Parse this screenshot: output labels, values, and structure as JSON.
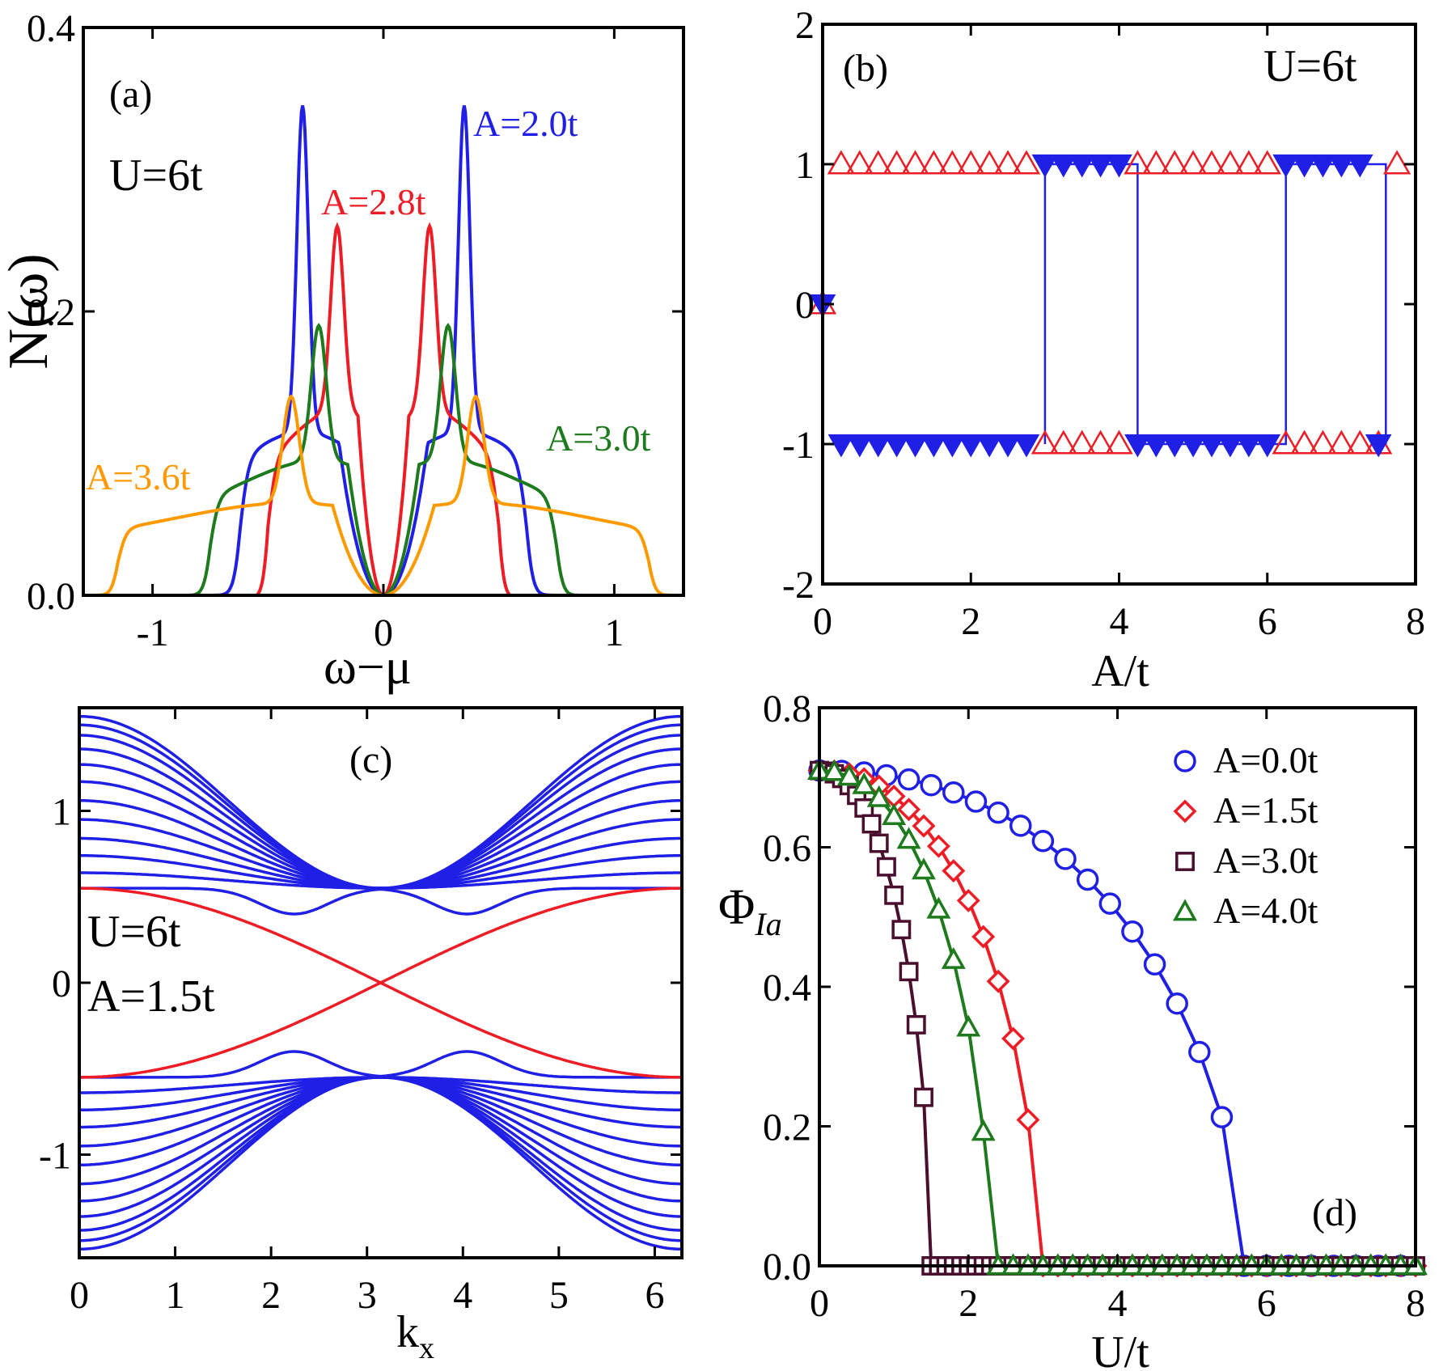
{
  "chart_data": [
    {
      "id": "a",
      "type": "line",
      "panel_label": "(a)",
      "annotation": "U=6t",
      "xlabel": "ω−μ",
      "ylabel": "N(ω)",
      "xlim": [
        -1.3,
        1.3
      ],
      "ylim": [
        0.0,
        0.4
      ],
      "xticks": [
        -1,
        0,
        1
      ],
      "xtick_labels": [
        "-1",
        "0",
        "1"
      ],
      "yticks": [
        0.0,
        0.2,
        0.4
      ],
      "ytick_labels": [
        "0.0",
        "0.2",
        "0.4"
      ],
      "series": [
        {
          "name": "A=2.0t",
          "color": "#1f1fe6",
          "edge": 0.75,
          "shoulder": 0.62,
          "shoulder_y": 0.115,
          "peak": 0.35,
          "peak_y": 0.345,
          "width": 0.035
        },
        {
          "name": "A=2.8t",
          "color": "#ee1c24",
          "edge": 0.55,
          "shoulder": 0.5,
          "shoulder_y": 0.13,
          "peak": 0.2,
          "peak_y": 0.26,
          "width": 0.04
        },
        {
          "name": "A=3.0t",
          "color": "#1d7a1d",
          "edge": 0.85,
          "shoulder": 0.75,
          "shoulder_y": 0.095,
          "peak": 0.28,
          "peak_y": 0.19,
          "width": 0.045
        },
        {
          "name": "A=3.6t",
          "color": "#ff9900",
          "edge": 1.25,
          "shoulder": 1.15,
          "shoulder_y": 0.065,
          "peak": 0.4,
          "peak_y": 0.14,
          "width": 0.05
        }
      ]
    },
    {
      "id": "b",
      "type": "scatter",
      "panel_label": "(b)",
      "annotation": "U=6t",
      "xlabel": "A/t",
      "ylabel": "",
      "xlim": [
        0,
        8
      ],
      "ylim": [
        -2,
        2
      ],
      "xticks": [
        0,
        2,
        4,
        6,
        8
      ],
      "xtick_labels": [
        "0",
        "2",
        "4",
        "6",
        "8"
      ],
      "yticks": [
        -2,
        -1,
        0,
        1,
        2
      ],
      "ytick_labels": [
        "-2",
        "-1",
        "0",
        "1",
        "2"
      ],
      "series": [
        {
          "name": "open-triangle-up",
          "color": "#ee1c24",
          "points": [
            [
              0,
              0
            ],
            [
              0.25,
              1
            ],
            [
              0.5,
              1
            ],
            [
              0.75,
              1
            ],
            [
              1,
              1
            ],
            [
              1.25,
              1
            ],
            [
              1.5,
              1
            ],
            [
              1.75,
              1
            ],
            [
              2,
              1
            ],
            [
              2.25,
              1
            ],
            [
              2.5,
              1
            ],
            [
              2.75,
              1
            ],
            [
              3,
              -1
            ],
            [
              3.25,
              -1
            ],
            [
              3.5,
              -1
            ],
            [
              3.75,
              -1
            ],
            [
              4,
              -1
            ],
            [
              4.25,
              1
            ],
            [
              4.5,
              1
            ],
            [
              4.75,
              1
            ],
            [
              5,
              1
            ],
            [
              5.25,
              1
            ],
            [
              5.5,
              1
            ],
            [
              5.75,
              1
            ],
            [
              6,
              1
            ],
            [
              6.25,
              -1
            ],
            [
              6.5,
              -1
            ],
            [
              6.75,
              -1
            ],
            [
              7,
              -1
            ],
            [
              7.25,
              -1
            ],
            [
              7.5,
              -1
            ],
            [
              7.75,
              1
            ]
          ]
        },
        {
          "name": "filled-triangle-down",
          "color": "#1f1fe6",
          "points": [
            [
              0,
              0
            ],
            [
              0.25,
              -1
            ],
            [
              0.5,
              -1
            ],
            [
              0.75,
              -1
            ],
            [
              1,
              -1
            ],
            [
              1.25,
              -1
            ],
            [
              1.5,
              -1
            ],
            [
              1.75,
              -1
            ],
            [
              2,
              -1
            ],
            [
              2.25,
              -1
            ],
            [
              2.5,
              -1
            ],
            [
              2.75,
              -1
            ],
            [
              3,
              1
            ],
            [
              3.25,
              1
            ],
            [
              3.5,
              1
            ],
            [
              3.75,
              1
            ],
            [
              4,
              1
            ],
            [
              4.25,
              -1
            ],
            [
              4.5,
              -1
            ],
            [
              4.75,
              -1
            ],
            [
              5,
              -1
            ],
            [
              5.25,
              -1
            ],
            [
              5.5,
              -1
            ],
            [
              5.75,
              -1
            ],
            [
              6,
              -1
            ],
            [
              6.25,
              1
            ],
            [
              6.5,
              1
            ],
            [
              6.75,
              1
            ],
            [
              7,
              1
            ],
            [
              7.25,
              1
            ],
            [
              7.5,
              -1
            ]
          ]
        }
      ],
      "step_line": {
        "color": "#1f1fe6",
        "points": [
          [
            3.0,
            -1
          ],
          [
            3.0,
            1
          ],
          [
            4.25,
            1
          ],
          [
            4.25,
            -1
          ],
          [
            6.25,
            -1
          ],
          [
            6.25,
            1
          ],
          [
            7.6,
            1
          ],
          [
            7.6,
            -1
          ]
        ]
      }
    },
    {
      "id": "c",
      "type": "line",
      "panel_label": "(c)",
      "annotation_lines": [
        "U=6t",
        "A=1.5t"
      ],
      "xlabel": "k",
      "xlabel_sub": "x",
      "ylabel": "",
      "xlim": [
        0,
        6.283
      ],
      "ylim": [
        -1.6,
        1.6
      ],
      "xticks": [
        0,
        1,
        2,
        3,
        4,
        5,
        6
      ],
      "xtick_labels": [
        "0",
        "1",
        "2",
        "3",
        "4",
        "5",
        "6"
      ],
      "yticks": [
        -1,
        0,
        1
      ],
      "ytick_labels": [
        "-1",
        "0",
        "1"
      ],
      "bulk_color": "#1f1fe6",
      "edge_color": "#ee1c24",
      "bulk_band_edges": [
        1.55,
        1.5,
        1.44,
        1.36,
        1.27,
        1.17,
        1.06,
        0.95,
        0.84,
        0.74,
        0.64,
        0.55
      ],
      "edge_state_amplitude": 0.55
    },
    {
      "id": "d",
      "type": "line",
      "panel_label": "(d)",
      "xlabel": "U/t",
      "ylabel": "Φ",
      "ylabel_sub": "Ia",
      "xlim": [
        0,
        8
      ],
      "ylim": [
        0,
        0.8
      ],
      "xticks": [
        0,
        2,
        4,
        6,
        8
      ],
      "xtick_labels": [
        "0",
        "2",
        "4",
        "6",
        "8"
      ],
      "yticks": [
        0,
        0.2,
        0.4,
        0.6,
        0.8
      ],
      "ytick_labels": [
        "0.0",
        "0.2",
        "0.4",
        "0.6",
        "0.8"
      ],
      "legend_position": "top-right",
      "series": [
        {
          "name": "A=0.0t",
          "marker": "circle",
          "color": "#1f1fe6",
          "Uc": 5.7,
          "step": 0.3
        },
        {
          "name": "A=1.5t",
          "marker": "diamond",
          "color": "#ee1c24",
          "Uc": 2.95,
          "step": 0.2
        },
        {
          "name": "A=3.0t",
          "marker": "square",
          "color": "#4a0e2e",
          "Uc": 1.5,
          "step": 0.1
        },
        {
          "name": "A=4.0t",
          "marker": "triangle",
          "color": "#1d7a1d",
          "Uc": 2.3,
          "step": 0.2
        }
      ]
    }
  ]
}
